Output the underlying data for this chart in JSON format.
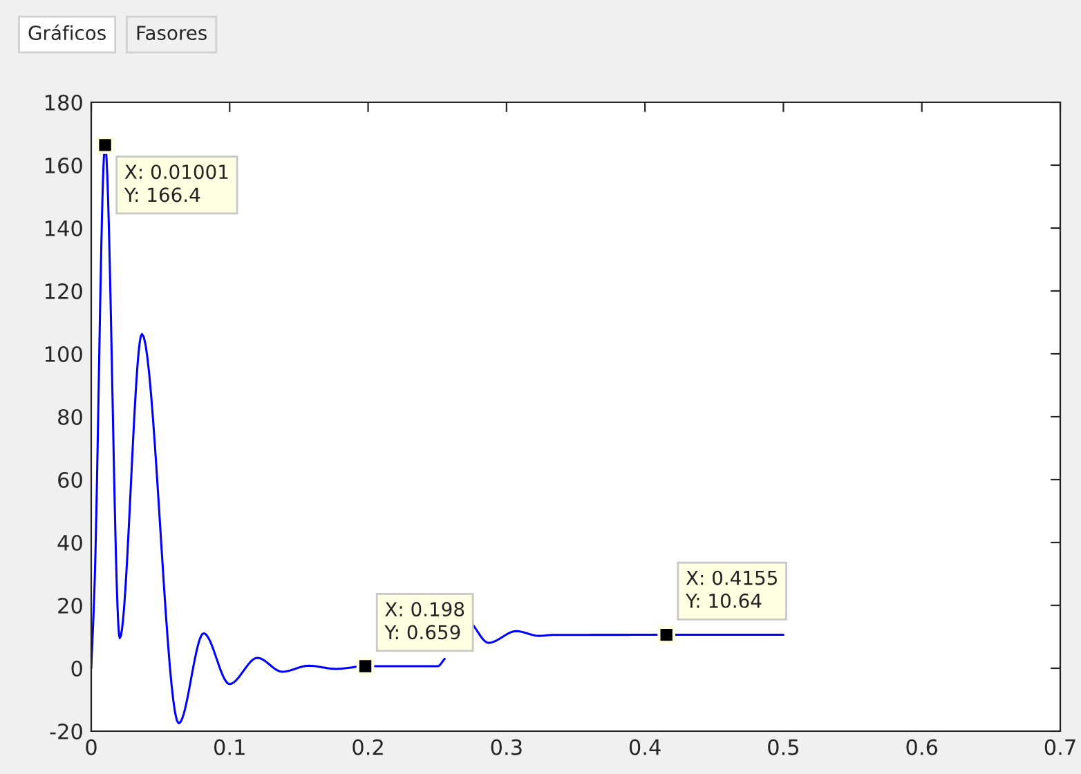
{
  "chart_data": {
    "type": "line",
    "x": [
      0,
      0.0023,
      0.01,
      0.0206,
      0.0366,
      0.0632,
      0.0812,
      0.0999,
      0.12,
      0.138,
      0.157,
      0.177,
      0.198,
      0.2503,
      0.2553,
      0.265,
      0.2753,
      0.287,
      0.307,
      0.3236,
      0.3335,
      0.4155,
      0.5
    ],
    "series": [
      {
        "color": "#0000ff",
        "values": [
          0,
          25,
          166.4,
          9.6,
          106.3,
          -17.5,
          11.1,
          -5,
          3.3,
          -1.1,
          0.8,
          -0.2,
          0.659,
          0.659,
          3,
          null,
          14,
          8.1,
          11.8,
          10.3,
          10.6,
          10.64,
          10.64
        ]
      },
      {
        "type": "scatter",
        "marker": "square",
        "color": "#000000",
        "x": [
          0.01001,
          0.198,
          0.4155
        ],
        "values": [
          166.4,
          0.659,
          10.64
        ]
      }
    ],
    "xlim": [
      0,
      0.7
    ],
    "xticks": [
      0,
      0.1,
      0.2,
      0.3,
      0.4,
      0.5,
      0.6,
      0.7
    ],
    "ylim": [
      -20,
      180
    ],
    "yticks": [
      -20,
      0,
      20,
      40,
      60,
      80,
      100,
      120,
      140,
      160,
      180
    ],
    "grid": false,
    "legend": false,
    "annotations": [
      "Gráficos",
      "Fasores",
      {
        "text": "X: 0.01001\nY: 166.4",
        "x": 0.01001,
        "y": 166.4
      },
      {
        "text": "X: 0.198\nY: 0.659",
        "x": 0.198,
        "y": 0.659
      },
      {
        "text": "X: 0.4155\nY: 10.64",
        "x": 0.4155,
        "y": 10.64
      }
    ]
  }
}
